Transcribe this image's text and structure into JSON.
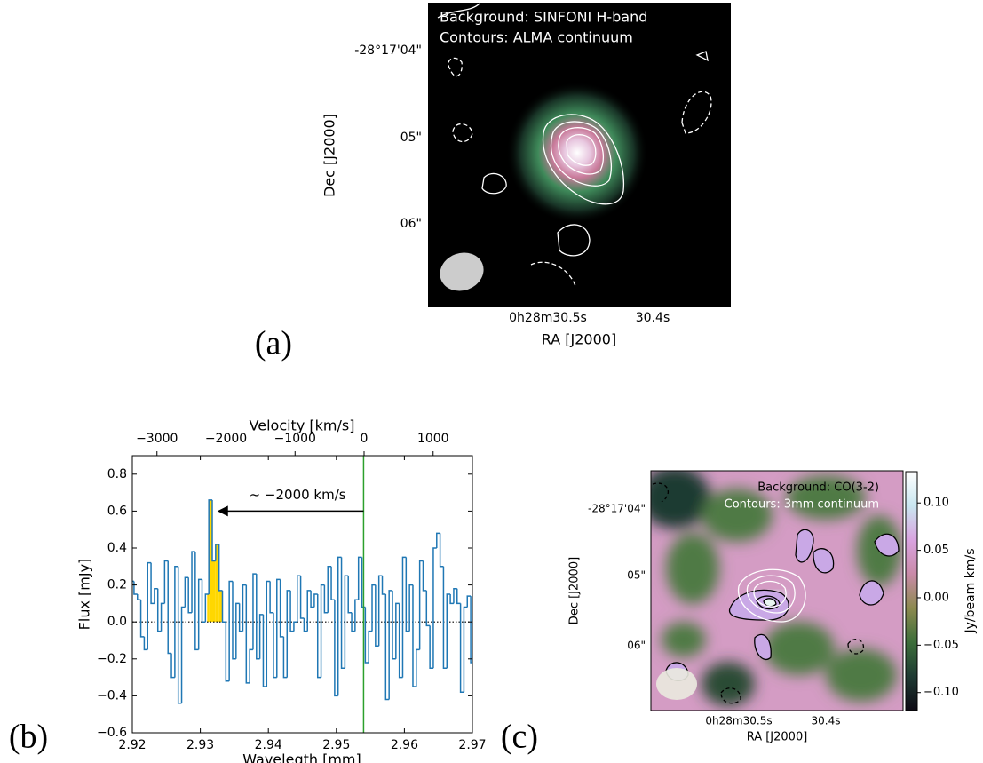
{
  "chart_data": [
    {
      "type": "image",
      "panel_label": "(a)",
      "annotations": [
        "Background: SINFONI H-band",
        "Contours: ALMA continuum"
      ],
      "xlabel": "RA [J2000]",
      "ylabel": "Dec [J2000]",
      "xticklabels": [
        "0h28m30.5s",
        "30.4s"
      ],
      "yticklabels": [
        "-28°17'04\"",
        "05\"",
        "06\""
      ]
    },
    {
      "type": "line",
      "panel_label": "(b)",
      "color": "#1f77b4",
      "xlabel": "Wavelegth [mm]",
      "ylabel": "Flux [mJy]",
      "x2label": "Velocity [km/s]",
      "x": [
        2.92,
        2.9205,
        2.921,
        2.9215,
        2.922,
        2.9225,
        2.923,
        2.9235,
        2.924,
        2.9245,
        2.925,
        2.9255,
        2.926,
        2.9265,
        2.927,
        2.9275,
        2.928,
        2.9285,
        2.929,
        2.9295,
        2.93,
        2.9305,
        2.931,
        2.9315,
        2.932,
        2.9325,
        2.933,
        2.9335,
        2.934,
        2.9345,
        2.935,
        2.9355,
        2.936,
        2.9365,
        2.937,
        2.9375,
        2.938,
        2.9385,
        2.939,
        2.9395,
        2.94,
        2.9405,
        2.941,
        2.9415,
        2.942,
        2.9425,
        2.943,
        2.9435,
        2.944,
        2.9445,
        2.945,
        2.9455,
        2.946,
        2.9465,
        2.947,
        2.9475,
        2.948,
        2.9485,
        2.949,
        2.9495,
        2.95,
        2.9505,
        2.951,
        2.9515,
        2.952,
        2.9525,
        2.953,
        2.9535,
        2.954,
        2.9545,
        2.955,
        2.9555,
        2.956,
        2.9565,
        2.957,
        2.9575,
        2.958,
        2.9585,
        2.959,
        2.9595,
        2.96,
        2.9605,
        2.961,
        2.9615,
        2.962,
        2.9625,
        2.963,
        2.9635,
        2.964,
        2.9645,
        2.965,
        2.9655,
        2.966,
        2.9665,
        2.967,
        2.9675,
        2.968,
        2.9685,
        2.969,
        2.9695,
        2.97
      ],
      "values": [
        0.22,
        0.15,
        0.12,
        -0.08,
        -0.15,
        0.32,
        0.1,
        0.18,
        -0.05,
        0.1,
        0.33,
        -0.17,
        -0.3,
        0.3,
        -0.44,
        0.08,
        0.24,
        0.05,
        0.38,
        -0.15,
        0.23,
        0,
        0.15,
        0.66,
        0.33,
        0.42,
        0.17,
        0,
        -0.32,
        0.22,
        -0.2,
        0.1,
        -0.05,
        0.2,
        -0.33,
        -0.15,
        0.26,
        -0.2,
        0.04,
        -0.35,
        0.22,
        0.05,
        -0.3,
        0.23,
        -0.08,
        -0.3,
        0.17,
        -0.05,
        0,
        0.25,
        0.02,
        -0.05,
        0.17,
        0.08,
        0.15,
        -0.3,
        0.2,
        0.05,
        0.3,
        0.12,
        -0.4,
        0.35,
        -0.25,
        0.25,
        0.05,
        -0.05,
        0.12,
        0.35,
        0.08,
        -0.22,
        -0.05,
        0.2,
        -0.13,
        0.25,
        0.15,
        -0.42,
        0.17,
        -0.2,
        0.1,
        -0.3,
        0.35,
        -0.05,
        0.2,
        -0.35,
        -0.15,
        0.33,
        0.17,
        -0.02,
        -0.25,
        0.4,
        0.48,
        0.3,
        -0.25,
        0.15,
        0.1,
        0.18,
        0.1,
        -0.38,
        0.08,
        0.14,
        -0.22
      ],
      "xlim": [
        2.92,
        2.97
      ],
      "xticks": [
        2.92,
        2.93,
        2.94,
        2.95,
        2.96,
        2.97
      ],
      "ylim": [
        -0.6,
        0.9
      ],
      "yticks": [
        {
          "value": -0.6,
          "label": "−0.6"
        },
        {
          "value": -0.4,
          "label": "−0.4"
        },
        {
          "value": -0.2,
          "label": "−0.2"
        },
        {
          "value": 0,
          "label": "0.0"
        },
        0.2,
        0.4,
        0.6,
        0.8
      ],
      "x2lim": [
        -3357,
        1569
      ],
      "x2ticks": [
        {
          "value": -3000,
          "label": "−3000"
        },
        {
          "value": -2000,
          "label": "−2000"
        },
        {
          "value": -1000,
          "label": "−1000"
        },
        0,
        1000
      ],
      "highlight": {
        "range": [
          2.931,
          2.9335
        ],
        "color": "#ffd700"
      },
      "vline": {
        "x": 2.954,
        "color": "#2ca02c"
      },
      "hline": {
        "y": 0
      },
      "annotation": {
        "text": "~ −2000 km/s",
        "from": [
          2.954,
          0.6
        ],
        "to": [
          2.9325,
          0.6
        ]
      }
    },
    {
      "type": "image",
      "panel_label": "(c)",
      "annotations": [
        "Background: CO(3-2)",
        "Contours: 3mm continuum"
      ],
      "xlabel": "RA [J2000]",
      "ylabel": "Dec [J2000]",
      "xticklabels": [
        "0h28m30.5s",
        "30.4s"
      ],
      "yticklabels": [
        "-28°17'04\"",
        "05\"",
        "06\""
      ],
      "colorbar": {
        "label": "Jy/beam km/s",
        "lim": [
          -0.119,
          0.133
        ],
        "ticks": [
          {
            "value": -0.1,
            "label": "−0.10"
          },
          {
            "value": -0.05,
            "label": "−0.05"
          },
          {
            "value": 0,
            "label": "0.00"
          },
          0.05,
          {
            "value": 0.1,
            "label": "0.10"
          }
        ],
        "colors": [
          "#0d0a14",
          "#1e3a33",
          "#3c6e3a",
          "#8c8a4f",
          "#c98aa8",
          "#d9a3e0",
          "#c9e6f0",
          "#ffffff"
        ]
      }
    }
  ]
}
